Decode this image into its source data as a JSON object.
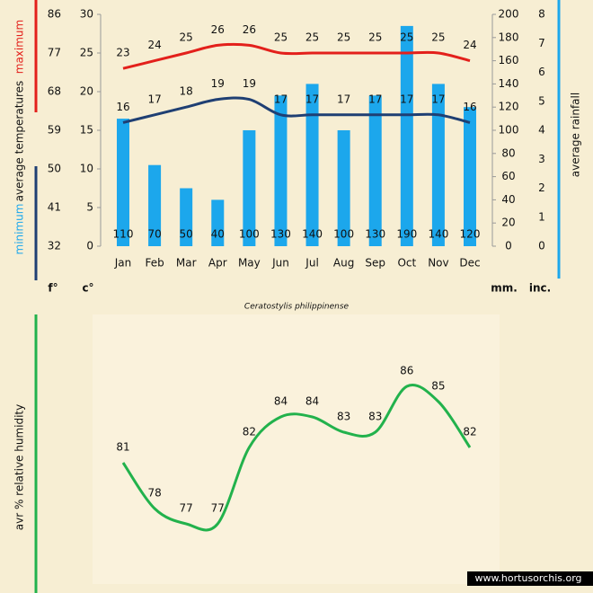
{
  "charts": [
    {
      "type": "bar",
      "subtitle": "Ceratostylis philippinense",
      "ylabel": "average temperatures",
      "categories": [
        "Jan",
        "Feb",
        "Mar",
        "Apr",
        "May",
        "Jun",
        "Jul",
        "Aug",
        "Sep",
        "Oct",
        "Nov",
        "Dec"
      ],
      "ylim": [
        0,
        30
      ],
      "yticks": [
        0,
        5,
        10,
        15,
        20,
        25,
        30
      ],
      "ylim_f": [
        32,
        86
      ],
      "yticks_f": [
        32,
        41,
        50,
        59,
        68,
        77,
        86
      ],
      "y2lim": [
        0,
        200
      ],
      "y2ticks": [
        0,
        20,
        40,
        60,
        80,
        100,
        120,
        140,
        160,
        180,
        200
      ],
      "y2lim_in": [
        0,
        8
      ],
      "y2ticks_in": [
        0,
        1,
        2,
        3,
        4,
        5,
        6,
        7,
        8
      ],
      "units": [
        "f°",
        "c°",
        "mm.",
        "inc."
      ],
      "series": [
        {
          "name": "average rainfall",
          "type": "bar",
          "axis": "y2",
          "color": "#1ca7ec",
          "values": [
            110,
            70,
            50,
            40,
            100,
            130,
            140,
            100,
            130,
            190,
            140,
            120
          ]
        },
        {
          "name": "maximum",
          "type": "line",
          "color": "#e3201b",
          "values": [
            23,
            24,
            25,
            26,
            26,
            25,
            25,
            25,
            25,
            25,
            25,
            24
          ]
        },
        {
          "name": "minimum",
          "type": "line",
          "color": "#1f3f73",
          "values": [
            16,
            17,
            18,
            19,
            19,
            17,
            17,
            17,
            17,
            17,
            17,
            16
          ]
        }
      ]
    },
    {
      "type": "line",
      "ylabel": "avr % relative humidity",
      "categories": [
        "Jan",
        "Feb",
        "Mar",
        "Apr",
        "May",
        "Jun",
        "Jul",
        "Aug",
        "Sep",
        "Oct",
        "Nov",
        "Dec"
      ],
      "series": [
        {
          "name": "relative humidity",
          "color": "#22b24c",
          "values": [
            81,
            78,
            77,
            77,
            82,
            84,
            84,
            83,
            83,
            86,
            85,
            82
          ]
        }
      ],
      "footer": "www.hortusorchis.org"
    }
  ]
}
